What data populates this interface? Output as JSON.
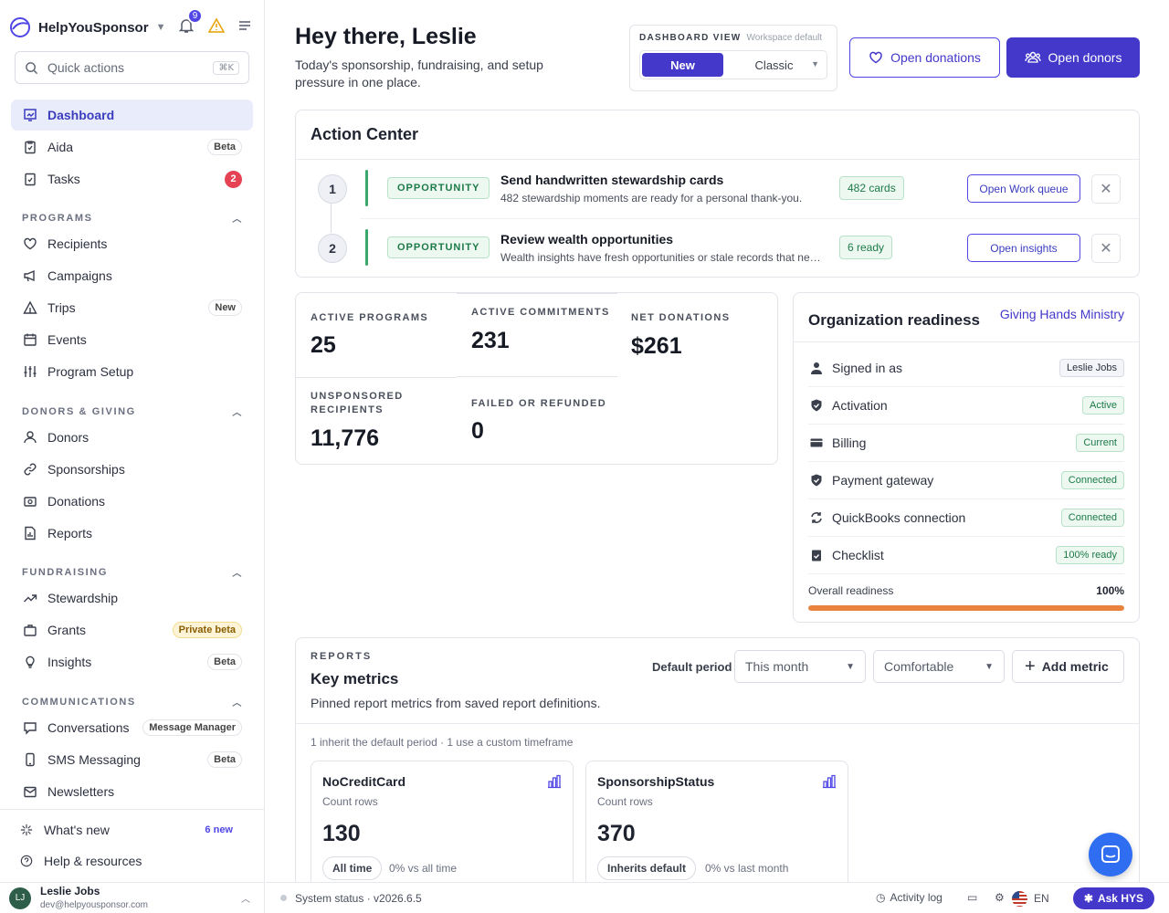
{
  "brand": {
    "name": "HelpYouSponsor",
    "notifications": "9"
  },
  "quick_actions": {
    "placeholder": "Quick actions",
    "shortcut": "⌘K"
  },
  "nav_top": [
    {
      "label": "Dashboard",
      "icon": "dashboard-icon"
    },
    {
      "label": "Aida",
      "badge": "Beta",
      "icon": "clipboard-icon"
    },
    {
      "label": "Tasks",
      "badge": "2",
      "icon": "tasks-icon"
    }
  ],
  "sections": {
    "programs": {
      "title": "PROGRAMS",
      "items": [
        {
          "label": "Recipients",
          "icon": "heart-icon"
        },
        {
          "label": "Campaigns",
          "icon": "megaphone-icon"
        },
        {
          "label": "Trips",
          "badge": "New",
          "icon": "tent-icon"
        },
        {
          "label": "Events",
          "icon": "calendar-icon"
        },
        {
          "label": "Program Setup",
          "icon": "sliders-icon"
        }
      ]
    },
    "donors": {
      "title": "DONORS & GIVING",
      "items": [
        {
          "label": "Donors",
          "icon": "users-icon"
        },
        {
          "label": "Sponsorships",
          "icon": "link-icon"
        },
        {
          "label": "Donations",
          "icon": "cash-icon"
        },
        {
          "label": "Reports",
          "icon": "report-icon"
        }
      ]
    },
    "fundraising": {
      "title": "FUNDRAISING",
      "items": [
        {
          "label": "Stewardship",
          "icon": "trend-icon"
        },
        {
          "label": "Grants",
          "badge": "Private beta",
          "icon": "briefcase-icon"
        },
        {
          "label": "Insights",
          "badge": "Beta",
          "icon": "bulb-icon"
        }
      ]
    },
    "communications": {
      "title": "COMMUNICATIONS",
      "items": [
        {
          "label": "Conversations",
          "badge": "Message Manager",
          "icon": "chat-icon"
        },
        {
          "label": "SMS Messaging",
          "badge": "Beta",
          "icon": "phone-icon"
        },
        {
          "label": "Newsletters",
          "icon": "mail-icon"
        }
      ]
    }
  },
  "sidebar_bottom": [
    {
      "label": "What's new",
      "badge": "6 new",
      "icon": "sparkle-icon"
    },
    {
      "label": "Help & resources",
      "icon": "help-icon"
    }
  ],
  "user": {
    "initials": "LJ",
    "name": "Leslie Jobs",
    "email": "dev@helpyousponsor.com"
  },
  "header": {
    "greeting": "Hey there, Leslie",
    "subtitle": "Today's sponsorship, fundraising, and setup pressure in one place.",
    "view_label": "DASHBOARD VIEW",
    "view_default": "Workspace default",
    "view_new": "New",
    "view_classic": "Classic",
    "btn_donations": "Open donations",
    "btn_donors": "Open donors"
  },
  "action_center": {
    "title": "Action Center",
    "rows": [
      {
        "num": "1",
        "tag": "OPPORTUNITY",
        "title": "Send handwritten stewardship cards",
        "desc": "482 stewardship moments are ready for a personal thank-you.",
        "pill": "482 cards",
        "button": "Open Work queue"
      },
      {
        "num": "2",
        "tag": "OPPORTUNITY",
        "title": "Review wealth opportunities",
        "desc": "Wealth insights have fresh opportunities or stale records that need review.",
        "pill": "6 ready",
        "button": "Open insights"
      }
    ]
  },
  "stats": {
    "active_programs": {
      "label": "ACTIVE PROGRAMS",
      "value": "25"
    },
    "active_commitments": {
      "label": "ACTIVE COMMITMENTS",
      "value": "231"
    },
    "net_donations": {
      "label": "NET DONATIONS",
      "value": "$261"
    },
    "unsponsored": {
      "label": "UNSPONSORED RECIPIENTS",
      "value": "11,776"
    },
    "failed": {
      "label": "FAILED OR REFUNDED",
      "value": "0"
    }
  },
  "readiness": {
    "title": "Organization readiness",
    "org": "Giving Hands Ministry",
    "rows": [
      {
        "label": "Signed in as",
        "status": "Leslie Jobs",
        "icon": "person-icon"
      },
      {
        "label": "Activation",
        "status": "Active",
        "icon": "shield-check-icon"
      },
      {
        "label": "Billing",
        "status": "Current",
        "icon": "credit-card-icon"
      },
      {
        "label": "Payment gateway",
        "status": "Connected",
        "icon": "shield-check-icon"
      },
      {
        "label": "QuickBooks connection",
        "status": "Connected",
        "icon": "sync-icon"
      },
      {
        "label": "Checklist",
        "status": "100% ready",
        "icon": "checklist-icon"
      }
    ],
    "overall_label": "Overall readiness",
    "overall_value": "100%",
    "progress": 1.0,
    "progress_color": "#e8823c"
  },
  "reports": {
    "eyebrow": "REPORTS",
    "title": "Key metrics",
    "desc": "Pinned report metrics from saved report definitions.",
    "period_label": "Default period",
    "period": "This month",
    "density": "Comfortable",
    "add_metric": "Add metric",
    "summary": "1 inherit the default period · 1 use a custom timeframe",
    "metrics": [
      {
        "name": "NoCreditCard",
        "sub": "Count rows",
        "value": "130",
        "chip": "All time",
        "cmp": "0% vs all time"
      },
      {
        "name": "SponsorshipStatus",
        "sub": "Count rows",
        "value": "370",
        "chip": "Inherits default",
        "cmp": "0% vs last month"
      }
    ]
  },
  "statusbar": {
    "status": "System status · v2026.6.5",
    "activity": "Activity log",
    "lang": "EN",
    "ask": "Ask HYS"
  },
  "colors": {
    "accent": "#4338ca",
    "success": "#1e7a49",
    "danger": "#e54253"
  }
}
